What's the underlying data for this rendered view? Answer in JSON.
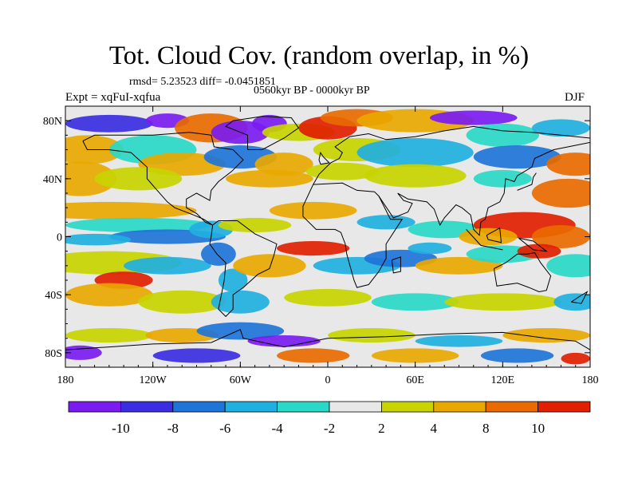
{
  "title": "Tot. Cloud Cov. (random overlap, in %)",
  "stats": "rmsd= 5.23523 diff= -0.0451851",
  "period": "0560kyr BP - 0000kyr BP",
  "experiment": "Expt = xqFuI-xqfua",
  "season": "DJF",
  "map": {
    "projection": "cylindrical equidistant",
    "lon_range": [
      -180,
      180
    ],
    "lat_range": [
      -90,
      90
    ],
    "x_tick_labels": [
      "180",
      "120W",
      "60W",
      "0",
      "60E",
      "120E",
      "180"
    ],
    "x_tick_lons": [
      -180,
      -120,
      -60,
      0,
      60,
      120,
      180
    ],
    "y_tick_labels": [
      "80N",
      "40N",
      "0",
      "40S",
      "80S"
    ],
    "y_tick_lats": [
      80,
      40,
      0,
      -40,
      -80
    ]
  },
  "colorbar": {
    "labels": [
      "-10",
      "-8",
      "-6",
      "-4",
      "-2",
      "2",
      "4",
      "8",
      "10"
    ],
    "colors": [
      "#7a1cf0",
      "#3a2ee0",
      "#1e74d8",
      "#1fb0e0",
      "#2ad8c8",
      "#e8e8e8",
      "#c8d400",
      "#e8a800",
      "#e86a00",
      "#e02000"
    ]
  }
}
